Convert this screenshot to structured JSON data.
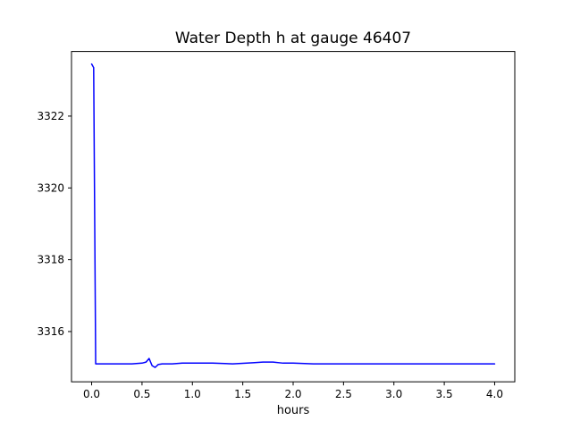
{
  "chart_data": {
    "type": "line",
    "title": "Water Depth h at gauge 46407",
    "xlabel": "hours",
    "ylabel": "",
    "xlim": [
      -0.2,
      4.2
    ],
    "ylim": [
      3314.6,
      3323.8
    ],
    "x_ticks": [
      0.0,
      0.5,
      1.0,
      1.5,
      2.0,
      2.5,
      3.0,
      3.5,
      4.0
    ],
    "x_tick_labels": [
      "0.0",
      "0.5",
      "1.0",
      "1.5",
      "2.0",
      "2.5",
      "3.0",
      "3.5",
      "4.0"
    ],
    "y_ticks": [
      3316,
      3318,
      3320,
      3322
    ],
    "y_tick_labels": [
      "3316",
      "3318",
      "3320",
      "3322"
    ],
    "grid": false,
    "legend": null,
    "line_color": "#0000ff",
    "spine_color": "#000000",
    "series": [
      {
        "name": "water-depth-h",
        "color": "#0000ff",
        "x": [
          0.0,
          0.02,
          0.04,
          0.1,
          0.2,
          0.3,
          0.4,
          0.5,
          0.54,
          0.57,
          0.6,
          0.63,
          0.66,
          0.7,
          0.8,
          0.9,
          1.0,
          1.2,
          1.4,
          1.6,
          1.7,
          1.8,
          1.9,
          2.0,
          2.2,
          2.4,
          2.6,
          2.8,
          3.0,
          3.2,
          3.4,
          3.6,
          3.8,
          4.0
        ],
        "y": [
          3323.45,
          3323.35,
          3315.1,
          3315.1,
          3315.1,
          3315.1,
          3315.1,
          3315.12,
          3315.15,
          3315.25,
          3315.05,
          3315.0,
          3315.08,
          3315.1,
          3315.1,
          3315.12,
          3315.12,
          3315.12,
          3315.1,
          3315.13,
          3315.15,
          3315.15,
          3315.12,
          3315.12,
          3315.1,
          3315.1,
          3315.1,
          3315.1,
          3315.1,
          3315.1,
          3315.1,
          3315.1,
          3315.1,
          3315.1
        ]
      }
    ]
  }
}
